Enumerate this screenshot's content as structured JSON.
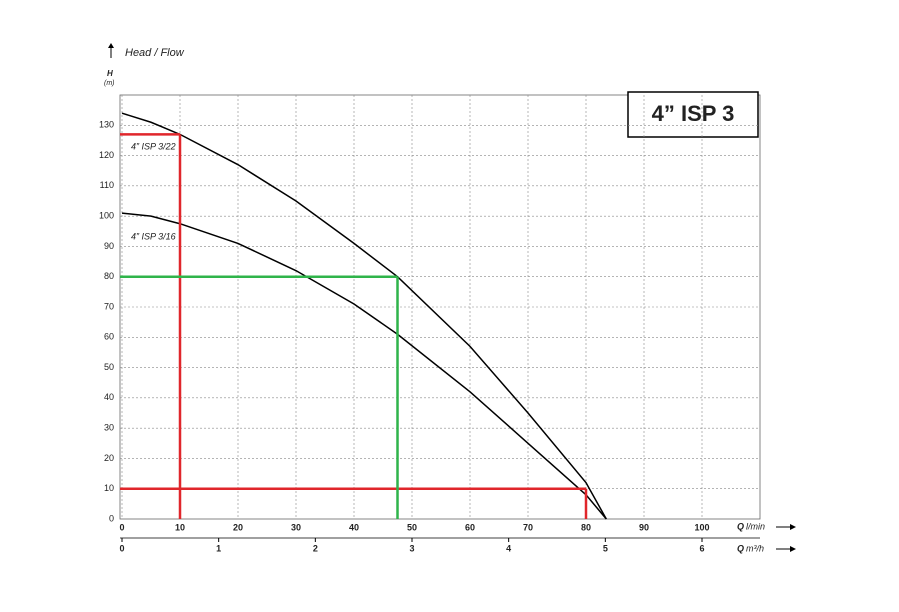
{
  "chart_data": {
    "type": "line",
    "title": "4” ISP 3",
    "y_label": "Head / Flow",
    "y_symbol": "H",
    "y_unit": "(m)",
    "x_symbol": "Q",
    "x_unit": "l/min",
    "x2_symbol": "Q",
    "x2_unit": "m³/h",
    "xlim": [
      0,
      110
    ],
    "xticks": [
      0,
      10,
      20,
      30,
      40,
      50,
      60,
      70,
      80,
      90,
      100
    ],
    "x2lim": [
      0,
      6.6
    ],
    "x2ticks": [
      0,
      1,
      2,
      3,
      4,
      5,
      6
    ],
    "ylim": [
      0,
      140
    ],
    "yticks": [
      0,
      10,
      20,
      30,
      40,
      50,
      60,
      70,
      80,
      90,
      100,
      110,
      120,
      130
    ],
    "grid": true,
    "series": [
      {
        "name": "4” ISP 3/22",
        "color": "#000000",
        "x": [
          0,
          5,
          10,
          20,
          30,
          40,
          47.5,
          60,
          70,
          80,
          83.5
        ],
        "values": [
          134,
          131,
          127,
          117,
          105,
          91,
          80,
          57,
          35,
          12,
          0
        ]
      },
      {
        "name": "4” ISP 3/16",
        "color": "#000000",
        "x": [
          0,
          5,
          10,
          20,
          30,
          40,
          47.5,
          60,
          70,
          80,
          83.5
        ],
        "values": [
          101,
          100,
          97.5,
          91,
          82,
          71,
          61,
          42,
          25,
          8,
          0
        ]
      }
    ],
    "reference_points": [
      {
        "x": 10,
        "y": 127,
        "color": "#e0262b"
      },
      {
        "x": 80,
        "y": 10,
        "color": "#e0262b"
      },
      {
        "x": 47.5,
        "y": 80,
        "color": "#2fb44a"
      }
    ]
  }
}
